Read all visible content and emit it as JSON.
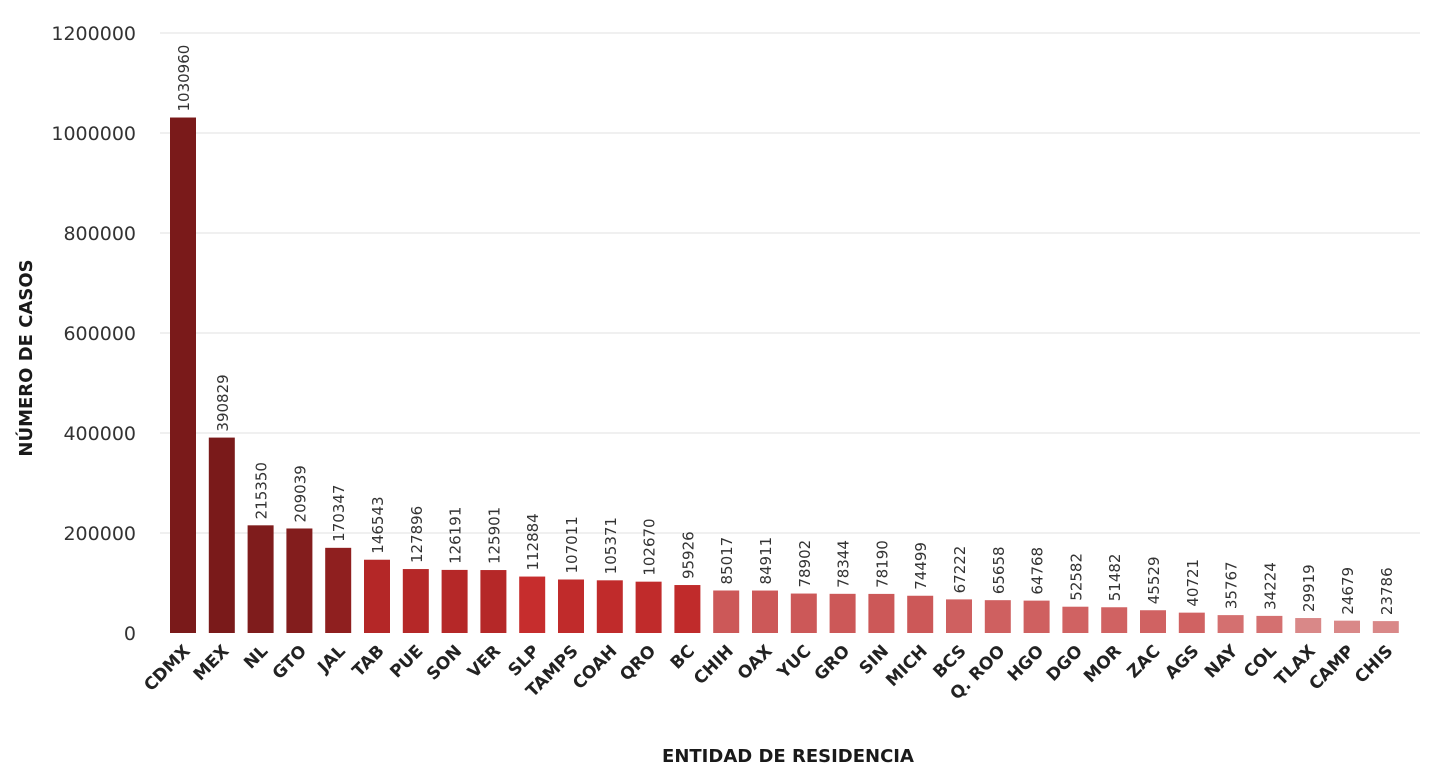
{
  "chart_data": {
    "type": "bar",
    "xlabel": "ENTIDAD DE RESIDENCIA",
    "ylabel": "NÚMERO DE CASOS",
    "ylim": [
      0,
      1200000
    ],
    "yticks": [
      0,
      200000,
      400000,
      600000,
      800000,
      1000000,
      1200000
    ],
    "grid": true,
    "categories": [
      "CDMX",
      "MEX",
      "NL",
      "GTO",
      "JAL",
      "TAB",
      "PUE",
      "SON",
      "VER",
      "SLP",
      "TAMPS",
      "COAH",
      "QRO",
      "BC",
      "CHIH",
      "OAX",
      "YUC",
      "GRO",
      "SIN",
      "MICH",
      "BCS",
      "Q. ROO",
      "HGO",
      "DGO",
      "MOR",
      "ZAC",
      "AGS",
      "NAY",
      "COL",
      "TLAX",
      "CAMP",
      "CHIS"
    ],
    "values": [
      1030960,
      390829,
      215350,
      209039,
      170347,
      146543,
      127896,
      126191,
      125901,
      112884,
      107011,
      105371,
      102670,
      95926,
      85017,
      84911,
      78902,
      78344,
      78190,
      74499,
      67222,
      65658,
      64768,
      52582,
      51482,
      45529,
      40721,
      35767,
      34224,
      29919,
      24679,
      23786
    ],
    "colors": [
      "#7a1a1a",
      "#7a1a1a",
      "#7f1c1c",
      "#831d1d",
      "#8f1f1f",
      "#b42727",
      "#b52828",
      "#b52828",
      "#b52828",
      "#c62d2d",
      "#c02b2b",
      "#c02b2b",
      "#c02b2b",
      "#c02b2b",
      "#cc5858",
      "#cc5858",
      "#cc5858",
      "#cc5858",
      "#cc5858",
      "#cc5858",
      "#cf6060",
      "#cf6060",
      "#cf6060",
      "#d06262",
      "#d06262",
      "#d06262",
      "#d06262",
      "#d47070",
      "#d47070",
      "#d98888",
      "#d98888",
      "#d98888"
    ]
  }
}
